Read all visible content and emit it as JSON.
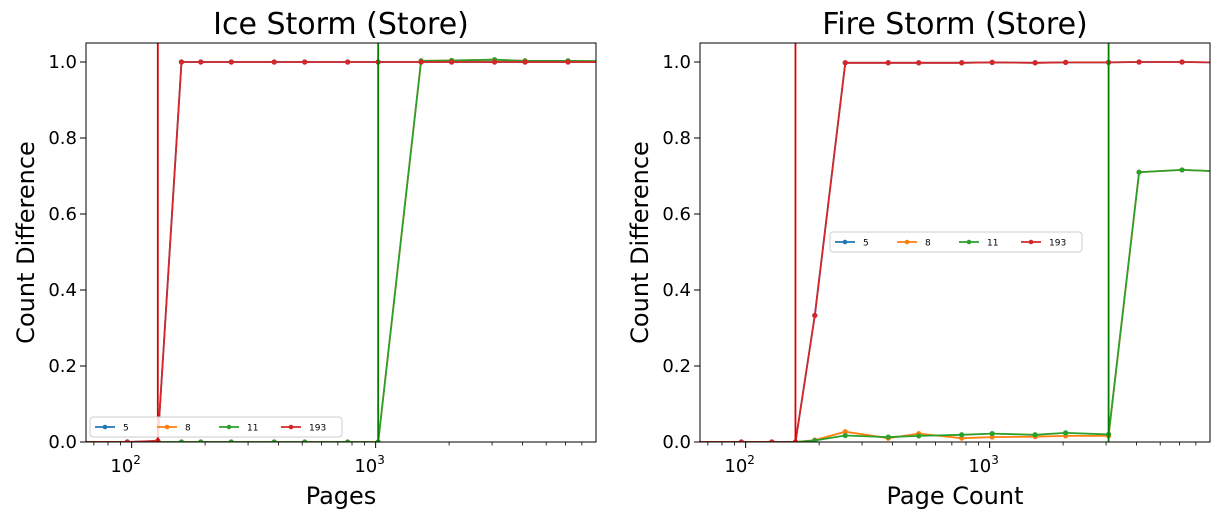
{
  "chart_data": [
    {
      "type": "line",
      "title": "Ice Storm (Store)",
      "xlabel": "Pages",
      "ylabel": "Count Difference",
      "xscale": "log",
      "xlim": [
        65,
        8000
      ],
      "ylim": [
        0,
        1.05
      ],
      "xticks": [
        {
          "base": "10",
          "exp": "2",
          "value": 100
        },
        {
          "base": "10",
          "exp": "3",
          "value": 1000
        }
      ],
      "yticks": [
        "0.0",
        "0.2",
        "0.4",
        "0.6",
        "0.8",
        "1.0"
      ],
      "grid": false,
      "legend": {
        "placement": "lower-left",
        "columns": 4
      },
      "vlines": [
        {
          "x": 128,
          "color": "#e00000"
        },
        {
          "x": 1024,
          "color": "#007f00"
        }
      ],
      "series": [
        {
          "name": "5",
          "color": "#1f77b4",
          "x": [
            64,
            96,
            128,
            160,
            192,
            256,
            384,
            512,
            768,
            1024,
            1536,
            2048,
            3072,
            4096,
            6144,
            8192
          ],
          "y": [
            0,
            0,
            0.003,
            1.0,
            1.0,
            1.0,
            1.0,
            1.0,
            1.0,
            1.0,
            1.0,
            1.0,
            1.0,
            1.0,
            1.0,
            1.0
          ]
        },
        {
          "name": "8",
          "color": "#ff7f0e",
          "x": [
            64,
            96,
            128,
            160,
            192,
            256,
            384,
            512,
            768,
            1024,
            1536,
            2048,
            3072,
            4096,
            6144,
            8192
          ],
          "y": [
            0,
            0,
            0,
            0,
            0,
            0,
            0,
            0,
            0,
            0,
            1.003,
            1.004,
            1.006,
            1.003,
            1.003,
            1.002
          ]
        },
        {
          "name": "11",
          "color": "#2ca02c",
          "x": [
            64,
            96,
            128,
            160,
            192,
            256,
            384,
            512,
            768,
            1024,
            1536,
            2048,
            3072,
            4096,
            6144,
            8192
          ],
          "y": [
            0,
            0,
            0,
            0,
            0,
            0,
            0,
            0,
            0,
            0,
            1.003,
            1.004,
            1.006,
            1.003,
            1.003,
            1.002
          ]
        },
        {
          "name": "193",
          "color": "#d62728",
          "x": [
            64,
            96,
            128,
            160,
            192,
            256,
            384,
            512,
            768,
            1024,
            1536,
            2048,
            3072,
            4096,
            6144,
            8192
          ],
          "y": [
            0,
            0,
            0.003,
            1.0,
            1.0,
            1.0,
            1.0,
            1.0,
            1.0,
            1.0,
            1.0,
            1.0,
            1.0,
            1.0,
            1.0,
            1.0
          ]
        }
      ]
    },
    {
      "type": "line",
      "title": "Fire Storm (Store)",
      "xlabel": "Page Count",
      "ylabel": "Count Difference",
      "xscale": "log",
      "xlim": [
        65,
        8000
      ],
      "ylim": [
        0,
        1.05
      ],
      "xticks": [
        {
          "base": "10",
          "exp": "2",
          "value": 100
        },
        {
          "base": "10",
          "exp": "3",
          "value": 1000
        }
      ],
      "yticks": [
        "0.0",
        "0.2",
        "0.4",
        "0.6",
        "0.8",
        "1.0"
      ],
      "grid": false,
      "legend": {
        "placement": "center",
        "columns": 4
      },
      "vlines": [
        {
          "x": 160,
          "color": "#e00000"
        },
        {
          "x": 3072,
          "color": "#007f00"
        }
      ],
      "series": [
        {
          "name": "5",
          "color": "#1f77b4",
          "x": [
            64,
            96,
            128,
            160,
            192,
            256,
            384,
            512,
            768,
            1024,
            1536,
            2048,
            3072,
            4096,
            6144,
            8192
          ],
          "y": [
            0,
            0,
            0,
            0,
            0.333,
            0.998,
            0.998,
            0.998,
            0.998,
            0.999,
            0.998,
            0.999,
            0.999,
            1.0,
            1.0,
            0.999
          ]
        },
        {
          "name": "8",
          "color": "#ff7f0e",
          "x": [
            64,
            96,
            128,
            160,
            192,
            256,
            384,
            512,
            768,
            1024,
            1536,
            2048,
            3072,
            4096,
            6144,
            8192
          ],
          "y": [
            0,
            0,
            0,
            0,
            0.005,
            0.027,
            0.01,
            0.022,
            0.01,
            0.013,
            0.014,
            0.016,
            0.016,
            0.71,
            0.716,
            0.713
          ]
        },
        {
          "name": "11",
          "color": "#2ca02c",
          "x": [
            64,
            96,
            128,
            160,
            192,
            256,
            384,
            512,
            768,
            1024,
            1536,
            2048,
            3072,
            4096,
            6144,
            8192
          ],
          "y": [
            0,
            0,
            0,
            0,
            0.004,
            0.017,
            0.013,
            0.016,
            0.019,
            0.022,
            0.019,
            0.024,
            0.02,
            0.71,
            0.716,
            0.713
          ]
        },
        {
          "name": "193",
          "color": "#d62728",
          "x": [
            64,
            96,
            128,
            160,
            192,
            256,
            384,
            512,
            768,
            1024,
            1536,
            2048,
            3072,
            4096,
            6144,
            8192
          ],
          "y": [
            0,
            0,
            0,
            0,
            0.333,
            0.998,
            0.998,
            0.998,
            0.998,
            0.999,
            0.998,
            0.999,
            0.999,
            1.0,
            1.0,
            0.999
          ]
        }
      ]
    }
  ]
}
